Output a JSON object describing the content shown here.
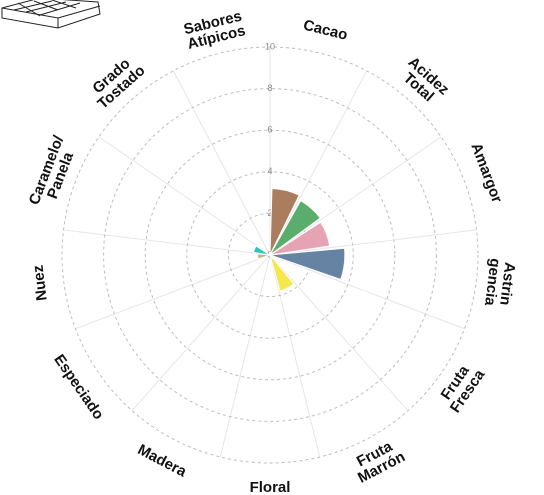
{
  "chart_data": {
    "type": "polar-bar",
    "categories": [
      [
        "Cacao"
      ],
      [
        "Acidez",
        "Total"
      ],
      [
        "Amargor"
      ],
      [
        "Astrin",
        "gencia"
      ],
      [
        "Fruta",
        "Fresca"
      ],
      [
        "Fruta",
        "Marrón"
      ],
      [
        "Floral"
      ],
      [
        "Madera"
      ],
      [
        "Especiado"
      ],
      [
        "Nuez"
      ],
      [
        "Caramelo/",
        "Panela"
      ],
      [
        "Grado",
        "Tostado"
      ],
      [
        "Sabores",
        "Atípicos"
      ]
    ],
    "values": [
      3.2,
      3.0,
      2.9,
      3.6,
      0,
      1.8,
      0,
      0,
      0,
      0.6,
      0.8,
      0,
      0
    ],
    "colors": [
      "#a97d5d",
      "#5aad6a",
      "#e6a3b4",
      "#6683a3",
      "#e48a4d",
      "#f5e74e",
      "#b6d46b",
      "#8e6c9c",
      "#d5a268",
      "#c9b487",
      "#27c9b6",
      "#6e6e6e",
      "#9e9e9e"
    ],
    "rlim": [
      0,
      10
    ],
    "rticks": [
      0,
      2,
      4,
      6,
      8,
      10
    ],
    "grid": true
  }
}
